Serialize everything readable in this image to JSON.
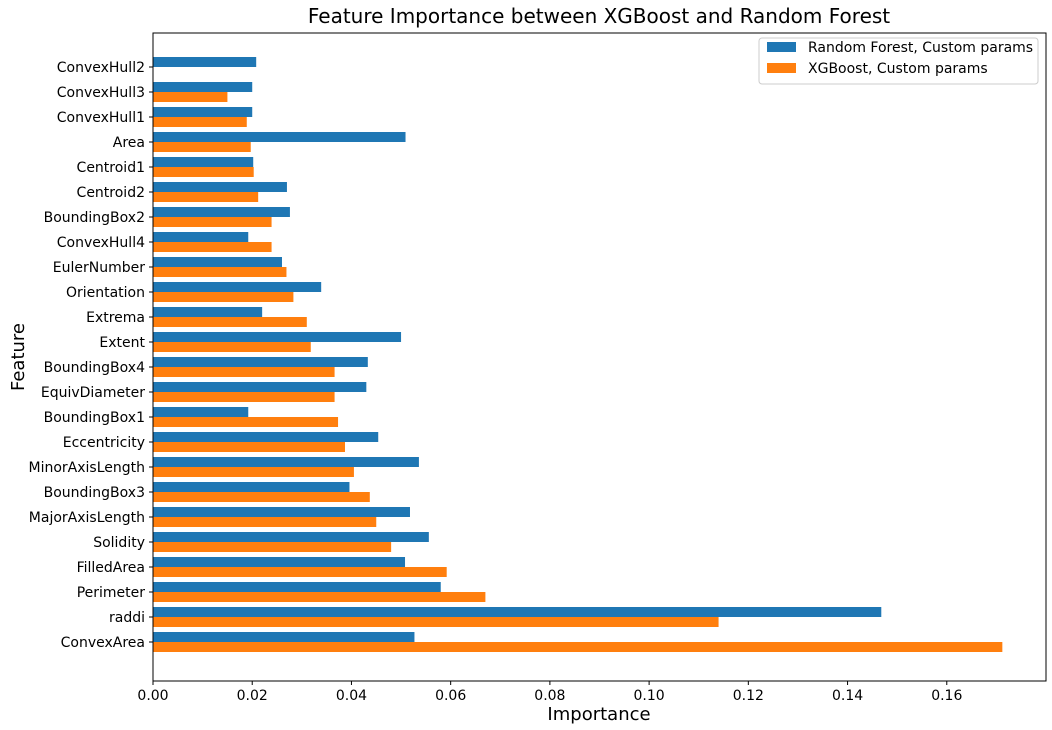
{
  "chart_data": {
    "type": "bar",
    "orientation": "horizontal",
    "title": "Feature Importance between XGBoost and Random Forest",
    "xlabel": "Importance",
    "ylabel": "Feature",
    "xlim": [
      0,
      0.18
    ],
    "xticks": [
      "0.00",
      "0.02",
      "0.04",
      "0.06",
      "0.08",
      "0.10",
      "0.12",
      "0.14",
      "0.16"
    ],
    "categories": [
      "ConvexArea",
      "raddi",
      "Perimeter",
      "FilledArea",
      "Solidity",
      "MajorAxisLength",
      "BoundingBox3",
      "MinorAxisLength",
      "Eccentricity",
      "BoundingBox1",
      "EquivDiameter",
      "BoundingBox4",
      "Extent",
      "Extrema",
      "Orientation",
      "EulerNumber",
      "ConvexHull4",
      "BoundingBox2",
      "Centroid2",
      "Centroid1",
      "Area",
      "ConvexHull1",
      "ConvexHull3",
      "ConvexHull2"
    ],
    "series": [
      {
        "name": "Random Forest, Custom params",
        "color": "#1f77b4",
        "values": [
          0.0527,
          0.1468,
          0.058,
          0.0508,
          0.0556,
          0.0518,
          0.0396,
          0.0536,
          0.0454,
          0.0192,
          0.043,
          0.0433,
          0.05,
          0.022,
          0.0339,
          0.026,
          0.0192,
          0.0276,
          0.027,
          0.0202,
          0.0509,
          0.02,
          0.02,
          0.0208
        ]
      },
      {
        "name": "XGBoost, Custom params",
        "color": "#ff7f0e",
        "values": [
          0.1712,
          0.114,
          0.067,
          0.0592,
          0.048,
          0.045,
          0.0437,
          0.0405,
          0.0387,
          0.0373,
          0.0366,
          0.0366,
          0.0318,
          0.031,
          0.0283,
          0.0269,
          0.0239,
          0.0239,
          0.0212,
          0.0203,
          0.0197,
          0.0189,
          0.015,
          0.0
        ]
      }
    ],
    "legend_position": "top-right",
    "grid": false
  }
}
